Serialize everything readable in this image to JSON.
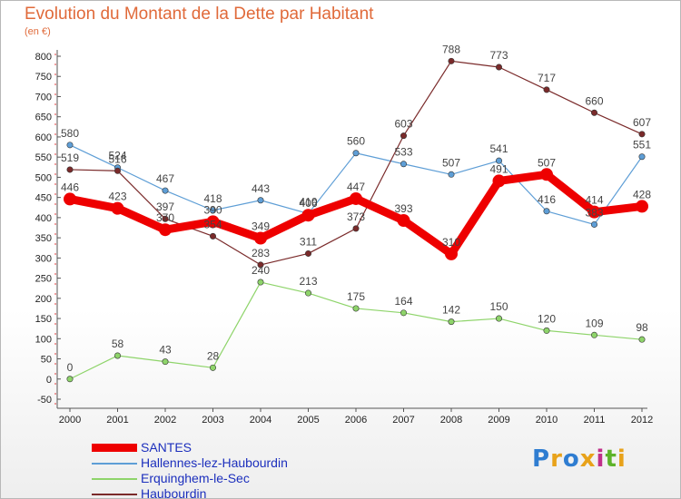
{
  "header": {
    "title": "Evolution du Montant de la Dette par Habitant",
    "subtitle": "(en €)"
  },
  "logo": {
    "text": "Proxiti",
    "colors": [
      "#2f7dd1",
      "#e8a21a",
      "#2f7dd1",
      "#e8a21a",
      "#c0308a",
      "#5db32a",
      "#e8a21a"
    ]
  },
  "chart_data": {
    "type": "line",
    "title": "Evolution du Montant de la Dette par Habitant",
    "subtitle": "(en €)",
    "xlabel": "",
    "ylabel": "",
    "ylim": [
      -50,
      800
    ],
    "yticks": [
      -50,
      0,
      50,
      100,
      150,
      200,
      250,
      300,
      350,
      400,
      450,
      500,
      550,
      600,
      650,
      700,
      750,
      800
    ],
    "grid": false,
    "legend_position": "bottom-left",
    "x": [
      "2000",
      "2001",
      "2002",
      "2003",
      "2004",
      "2005",
      "2006",
      "2007",
      "2008",
      "2009",
      "2010",
      "2011",
      "2012"
    ],
    "series": [
      {
        "name": "SANTES",
        "color": "#ee0000",
        "values": [
          446,
          423,
          370,
          390,
          349,
          406,
          447,
          393,
          310,
          491,
          507,
          414,
          428
        ]
      },
      {
        "name": "Hallennes-lez-Haubourdin",
        "color": "#5e9ed6",
        "values": [
          580,
          524,
          467,
          418,
          443,
          410,
          560,
          533,
          507,
          541,
          416,
          383,
          551
        ]
      },
      {
        "name": "Erquinghem-le-Sec",
        "color": "#8ed46a",
        "values": [
          0,
          58,
          43,
          28,
          240,
          213,
          175,
          164,
          142,
          150,
          120,
          109,
          98
        ]
      },
      {
        "name": "Haubourdin",
        "color": "#7a2a2a",
        "values": [
          519,
          516,
          397,
          354,
          283,
          311,
          373,
          603,
          788,
          773,
          717,
          660,
          607
        ]
      }
    ]
  }
}
